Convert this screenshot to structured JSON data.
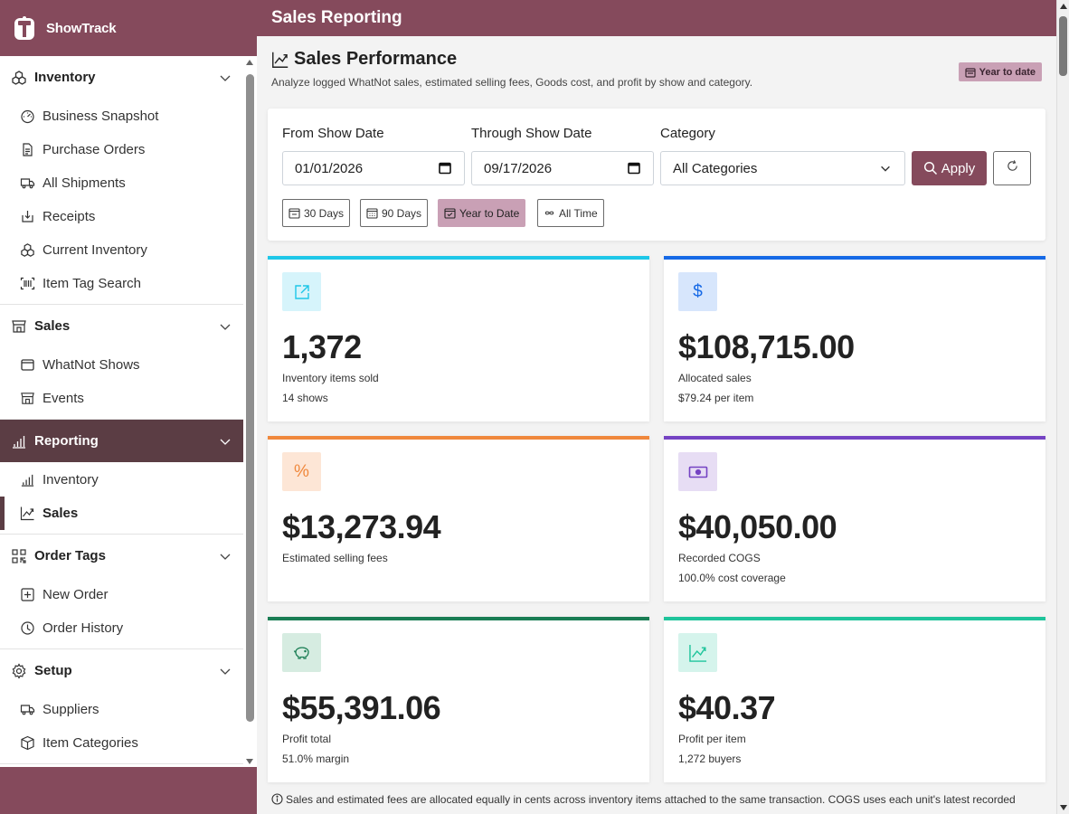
{
  "brand": {
    "name": "ShowTrack"
  },
  "sidebar": {
    "groups": [
      {
        "label": "Inventory",
        "icon": "boxes-icon",
        "items": [
          {
            "label": "Business Snapshot",
            "icon": "speedometer-icon"
          },
          {
            "label": "Purchase Orders",
            "icon": "document-icon"
          },
          {
            "label": "All Shipments",
            "icon": "truck-icon"
          },
          {
            "label": "Receipts",
            "icon": "box-arrow-in-icon"
          },
          {
            "label": "Current Inventory",
            "icon": "boxes-icon"
          },
          {
            "label": "Item Tag Search",
            "icon": "barcode-scan-icon"
          }
        ]
      },
      {
        "label": "Sales",
        "icon": "shop-icon",
        "items": [
          {
            "label": "WhatNot Shows",
            "icon": "window-icon"
          },
          {
            "label": "Events",
            "icon": "shop-icon"
          }
        ]
      },
      {
        "label": "Reporting",
        "icon": "bar-chart-icon",
        "items": [
          {
            "label": "Inventory",
            "icon": "bar-chart-icon"
          },
          {
            "label": "Sales",
            "icon": "graph-up-icon"
          }
        ]
      },
      {
        "label": "Order Tags",
        "icon": "qr-code-icon",
        "items": [
          {
            "label": "New Order",
            "icon": "plus-square-icon"
          },
          {
            "label": "Order History",
            "icon": "clock-history-icon"
          }
        ]
      },
      {
        "label": "Setup",
        "icon": "gear-icon",
        "items": [
          {
            "label": "Suppliers",
            "icon": "truck-icon"
          },
          {
            "label": "Item Categories",
            "icon": "box-icon"
          }
        ]
      }
    ]
  },
  "topbar": {
    "title": "Sales Reporting"
  },
  "page": {
    "title": "Sales Performance",
    "subtitle": "Analyze logged WhatNot sales, estimated selling fees, Goods cost, and profit by show and category.",
    "badge": "Year to date"
  },
  "filters": {
    "from_label": "From Show Date",
    "from_value": "01/01/2026",
    "through_label": "Through Show Date",
    "through_value": "09/17/2026",
    "category_label": "Category",
    "category_value": "All Categories",
    "apply_label": "Apply",
    "presets": [
      "30 Days",
      "90 Days",
      "Year to Date",
      "All Time"
    ],
    "active_preset": "Year to Date"
  },
  "cards": [
    {
      "value": "1,372",
      "label": "Inventory items sold",
      "sub": "14 shows",
      "accent": "#1ec7e8",
      "icon": "box-arrow-up-right-icon"
    },
    {
      "value": "$108,715.00",
      "label": "Allocated sales",
      "sub": "$79.24 per item",
      "accent": "#1669e6",
      "icon": "dollar-icon"
    },
    {
      "value": "$13,273.94",
      "label": "Estimated selling fees",
      "sub": "",
      "accent": "#f0883c",
      "icon": "percent-icon"
    },
    {
      "value": "$40,050.00",
      "label": "Recorded COGS",
      "sub": "100.0% cost coverage",
      "accent": "#7543c3",
      "icon": "cash-icon"
    },
    {
      "value": "$55,391.06",
      "label": "Profit total",
      "sub": "51.0% margin",
      "accent": "#1a7d54",
      "icon": "piggy-bank-icon"
    },
    {
      "value": "$40.37",
      "label": "Profit per item",
      "sub": "1,272 buyers",
      "accent": "#1fc49b",
      "icon": "graph-up-icon"
    }
  ],
  "footnote": "Sales and estimated fees are allocated equally in cents across inventory items attached to the same transaction. COGS uses each unit's latest recorded"
}
